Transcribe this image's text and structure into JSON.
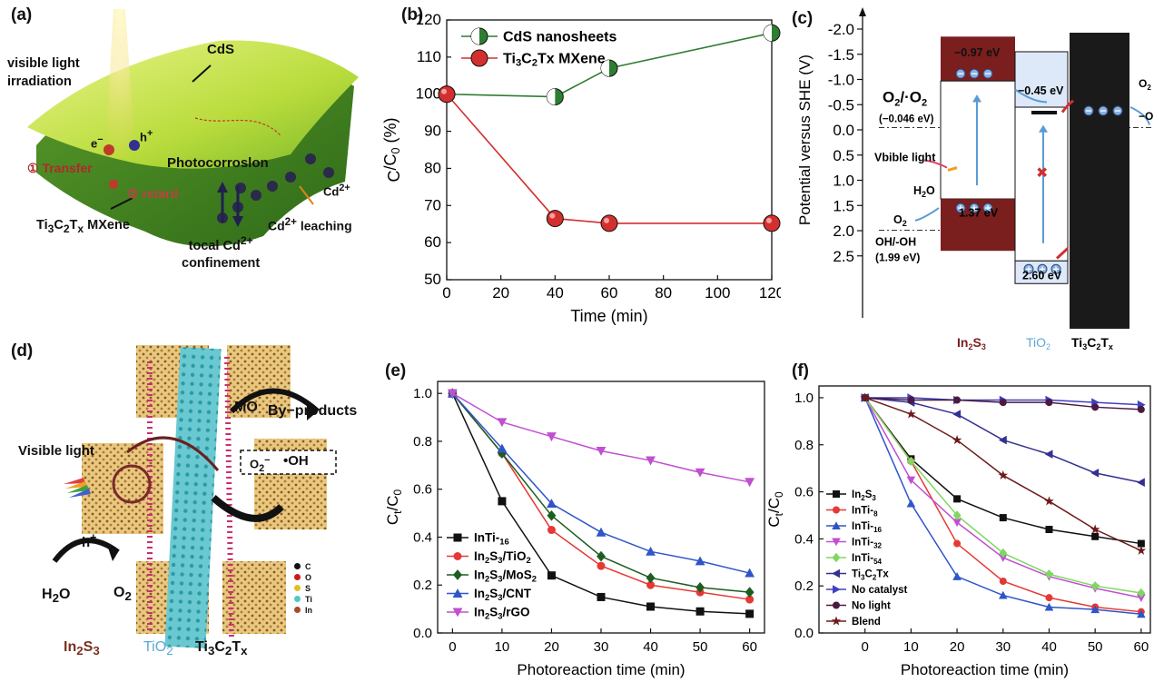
{
  "panels": {
    "a": {
      "label": "(a)",
      "texts": {
        "visible": "visible light",
        "irradiation": "irradiation",
        "cds": "CdS",
        "e": "e",
        "h": "h",
        "transfer": "① Transfer",
        "retard": "② retard",
        "photocorrosion": "Photocorroslon",
        "cd_ion": "Cd",
        "leaching_cd": "Cd",
        "leaching": "leaching",
        "mxene": "MXene",
        "local": "tocal Cd",
        "confinement": "confinement"
      }
    },
    "c": {
      "label": "(c)",
      "axis_label": "Potential versus SHE (V)",
      "ticks": [
        "-2.0",
        "-1.5",
        "-1.0",
        "-0.5",
        "0.0",
        "0.5",
        "1.0",
        "1.5",
        "2.0",
        "2.5"
      ],
      "texts": {
        "o2_pair": "O",
        "o2_pot": "(−0.046 eV)",
        "cb_in2s3": "−0.97 eV",
        "cb_tio2": "−0.45 eV",
        "vb_in2s3": "1.37 eV",
        "vb_tio2": "2.60 eV",
        "light": "Vbible light",
        "h2o": "H",
        "o2": "O",
        "oh_pair": "OH/-OH",
        "oh_pot": "(1.99 eV)",
        "o2_right": "O",
        "minus_o": "−O",
        "in2s3": "In",
        "tio2": "TiO",
        "ti3c2": "Ti"
      }
    },
    "d": {
      "label": "(d)",
      "texts": {
        "mo": "MO",
        "byproducts": "By−products",
        "visible": "Visible light",
        "h": "h",
        "h2o": "H",
        "o2": "O",
        "oh": "•OH",
        "o2rad": "O",
        "in2s3": "In",
        "tio2": "TiO",
        "ti3c2": "Ti"
      },
      "legend": [
        {
          "label": "C",
          "color": "#111111"
        },
        {
          "label": "O",
          "color": "#d01818"
        },
        {
          "label": "S",
          "color": "#e0c020"
        },
        {
          "label": "Ti",
          "color": "#50c8c8"
        },
        {
          "label": "In",
          "color": "#a05028"
        }
      ]
    }
  },
  "chart_data": [
    {
      "panel": "(b)",
      "type": "line",
      "x": [
        0,
        40,
        60,
        120
      ],
      "xlabel": "Time (min)",
      "ylabel": "C/C0 (%)",
      "xlim": [
        0,
        120
      ],
      "ylim": [
        50,
        120
      ],
      "xticks": [
        0,
        20,
        40,
        60,
        80,
        100,
        120
      ],
      "yticks": [
        50,
        60,
        70,
        80,
        90,
        100,
        110,
        120
      ],
      "legend_position": "top-left",
      "series": [
        {
          "name": "CdS nanosheets",
          "values": [
            100,
            99.3,
            107,
            116.5
          ],
          "color": "#2e7d32"
        },
        {
          "name": "Ti3C2Tx MXene",
          "values": [
            100,
            66.5,
            65.2,
            65.2
          ],
          "color": "#d32f2f"
        }
      ]
    },
    {
      "panel": "(e)",
      "type": "line",
      "x": [
        0,
        10,
        20,
        30,
        40,
        50,
        60
      ],
      "xlabel": "Photoreaction time (min)",
      "ylabel": "Ct/C0",
      "xlim": [
        -3,
        63
      ],
      "ylim": [
        0,
        1.05
      ],
      "xticks": [
        0,
        10,
        20,
        30,
        40,
        50,
        60
      ],
      "yticks": [
        0.0,
        0.2,
        0.4,
        0.6,
        0.8,
        1.0
      ],
      "legend_position": "bottom-left",
      "series": [
        {
          "name": "InTi-16",
          "values": [
            1.0,
            0.55,
            0.24,
            0.15,
            0.11,
            0.09,
            0.08
          ],
          "color": "#111111",
          "marker": "square"
        },
        {
          "name": "In2S3/TiO2",
          "values": [
            1.0,
            0.75,
            0.43,
            0.28,
            0.2,
            0.17,
            0.14
          ],
          "color": "#e53935",
          "marker": "circle"
        },
        {
          "name": "In2S3/MoS2",
          "values": [
            1.0,
            0.75,
            0.49,
            0.32,
            0.23,
            0.19,
            0.17
          ],
          "color": "#1b5e20",
          "marker": "diamond"
        },
        {
          "name": "In2S3/CNT",
          "values": [
            1.0,
            0.77,
            0.54,
            0.42,
            0.34,
            0.3,
            0.25
          ],
          "color": "#2f55c8",
          "marker": "triangle-up"
        },
        {
          "name": "In2S3/rGO",
          "values": [
            1.0,
            0.88,
            0.82,
            0.76,
            0.72,
            0.67,
            0.63
          ],
          "color": "#c050d0",
          "marker": "triangle-down"
        }
      ]
    },
    {
      "panel": "(f)",
      "type": "line",
      "x": [
        0,
        10,
        20,
        30,
        40,
        50,
        60
      ],
      "xlabel": "Photoreaction time (min)",
      "ylabel": "Ct/C0",
      "xlim": [
        -10,
        62
      ],
      "ylim": [
        0,
        1.05
      ],
      "xticks": [
        0,
        10,
        20,
        30,
        40,
        50,
        60
      ],
      "yticks": [
        0.0,
        0.2,
        0.4,
        0.6,
        0.8,
        1.0
      ],
      "legend_position": "bottom-left",
      "series": [
        {
          "name": "In2S3",
          "values": [
            1.0,
            0.74,
            0.57,
            0.49,
            0.44,
            0.41,
            0.38
          ],
          "color": "#111111",
          "marker": "square"
        },
        {
          "name": "InTi-8",
          "values": [
            1.0,
            0.73,
            0.38,
            0.22,
            0.15,
            0.11,
            0.09
          ],
          "color": "#e53935",
          "marker": "circle"
        },
        {
          "name": "InTi-16",
          "values": [
            1.0,
            0.55,
            0.24,
            0.16,
            0.11,
            0.1,
            0.08
          ],
          "color": "#2f55c8",
          "marker": "triangle-up"
        },
        {
          "name": "InTi-32",
          "values": [
            1.0,
            0.65,
            0.47,
            0.32,
            0.24,
            0.19,
            0.15
          ],
          "color": "#c050d0",
          "marker": "triangle-down"
        },
        {
          "name": "InTi-54",
          "values": [
            1.0,
            0.73,
            0.5,
            0.34,
            0.25,
            0.2,
            0.17
          ],
          "color": "#7fd860",
          "marker": "diamond"
        },
        {
          "name": "Ti3C2Tx",
          "values": [
            1.0,
            0.98,
            0.93,
            0.82,
            0.76,
            0.68,
            0.64
          ],
          "color": "#343090",
          "marker": "triangle-left"
        },
        {
          "name": "No catalyst",
          "values": [
            1.0,
            1.0,
            0.99,
            0.99,
            0.99,
            0.98,
            0.97
          ],
          "color": "#4040c0",
          "marker": "triangle-right"
        },
        {
          "name": "No light",
          "values": [
            1.0,
            0.99,
            0.99,
            0.98,
            0.98,
            0.96,
            0.95
          ],
          "color": "#4a1a40",
          "marker": "circle"
        },
        {
          "name": "Blend",
          "values": [
            1.0,
            0.93,
            0.82,
            0.67,
            0.56,
            0.44,
            0.35
          ],
          "color": "#6e1a1a",
          "marker": "star"
        }
      ]
    }
  ]
}
